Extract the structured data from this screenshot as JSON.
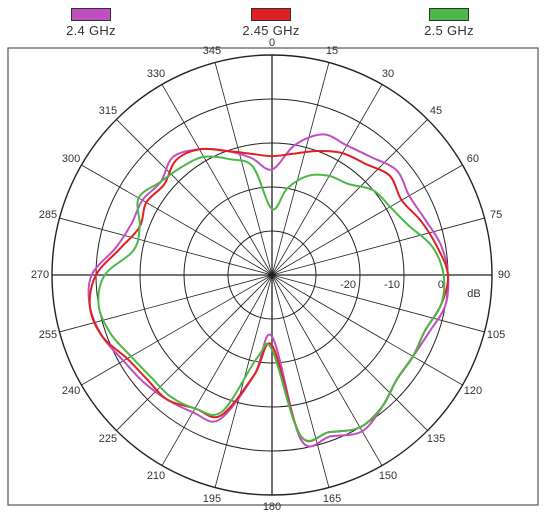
{
  "chart_data": {
    "type": "line",
    "subtype": "polar radiation pattern",
    "radial_unit_label": "dB",
    "radial_ticks": [
      {
        "value": -20,
        "label": "-20"
      },
      {
        "value": -10,
        "label": "-10"
      },
      {
        "value": 0,
        "label": "0"
      }
    ],
    "radial_range": [
      -40,
      10
    ],
    "angle_ticks": [
      "0",
      "15",
      "30",
      "45",
      "60",
      "75",
      "90",
      "105",
      "120",
      "135",
      "150",
      "165",
      "180",
      "195",
      "210",
      "225",
      "240",
      "255",
      "270",
      "285",
      "300",
      "315",
      "330",
      "345"
    ],
    "angle_tick_values": [
      0,
      15,
      30,
      45,
      60,
      75,
      90,
      105,
      120,
      135,
      150,
      165,
      180,
      195,
      210,
      225,
      240,
      255,
      270,
      285,
      300,
      315,
      330,
      345
    ],
    "angle_direction": "clockwise from top",
    "grid": true,
    "legend_placement": "top",
    "angles": [
      0,
      10,
      20,
      30,
      40,
      50,
      60,
      70,
      80,
      90,
      100,
      110,
      120,
      130,
      140,
      150,
      160,
      170,
      180,
      190,
      200,
      210,
      220,
      230,
      240,
      250,
      260,
      270,
      280,
      290,
      300,
      310,
      320,
      330,
      340,
      350
    ],
    "series": [
      {
        "name": "2.4 GHz",
        "color": "#c04fc0",
        "values": [
          -16,
          -10,
          -6,
          -6,
          -5,
          -3,
          -4,
          -3,
          -1,
          0,
          0,
          -2,
          -3,
          -3,
          -1,
          1,
          -1,
          -2,
          -26,
          -17,
          -5,
          -4,
          -3,
          -2,
          -1,
          1,
          2,
          1,
          -4,
          -6,
          -6,
          -7,
          -5,
          -7,
          -10,
          -13
        ]
      },
      {
        "name": "2.45 GHz",
        "color": "#e02020",
        "values": [
          -13,
          -12,
          -10,
          -8,
          -7,
          -5,
          -6,
          -4,
          -2,
          0,
          -1,
          -3,
          -3,
          -3,
          -1,
          0,
          -2,
          -3,
          -24,
          -17,
          -6,
          -5,
          -3,
          -3,
          -2,
          1,
          2,
          0,
          -5,
          -8,
          -7,
          -8,
          -6,
          -7,
          -10,
          -12
        ]
      },
      {
        "name": "2.5 GHz",
        "color": "#4cb848",
        "values": [
          -25,
          -20,
          -16,
          -14,
          -13,
          -10,
          -9,
          -7,
          -3,
          -1,
          -1,
          -3,
          -3,
          -3,
          -1,
          0,
          -2,
          -3,
          -23,
          -21,
          -7,
          -5,
          -4,
          -4,
          -3,
          -1,
          0,
          -2,
          -8,
          -8,
          -5,
          -7,
          -8,
          -9,
          -12,
          -15
        ]
      }
    ]
  }
}
